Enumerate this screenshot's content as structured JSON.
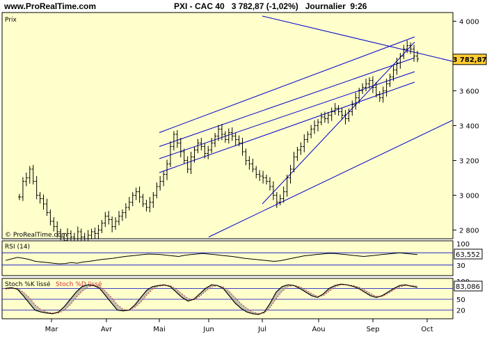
{
  "header": {
    "site": "www.ProRealTime.com",
    "title": "PXI - CAC 40   3 782,87 (-1,02%)   Journalier  9:26"
  },
  "colors": {
    "panel_bg": "#ffffcc",
    "price_bars": "#000000",
    "trend_lines": "#0000cc",
    "last_price_tag": "#ffcc33",
    "stoch_k": "#000000",
    "stoch_d": "#cc3333",
    "stoch_fill": "#999999"
  },
  "chart_data": [
    {
      "type": "ohlc",
      "panel": "price",
      "label": "Prix",
      "watermark": "© ProRealTime.com",
      "ylim": [
        2750,
        4050
      ],
      "y_ticks": [
        2800,
        3000,
        3200,
        3400,
        3600,
        3800,
        4000
      ],
      "y_tick_labels": [
        "2 800",
        "3 000",
        "3 200",
        "3 400",
        "3 600",
        "3 800",
        "4 000"
      ],
      "x_tick_labels": [
        "Mar",
        "Avr",
        "Mai",
        "Jun",
        "Jul",
        "Aou",
        "Sep",
        "Oct"
      ],
      "last_value": 3782.87,
      "last_value_label": "3 782,87",
      "series": [
        {
          "values": [
            2990,
            3080,
            3100,
            3150,
            3080,
            3000,
            2980,
            2950,
            2900,
            2850,
            2820,
            2790,
            2760,
            2740,
            2780,
            2760,
            2750,
            2790,
            2760,
            2750,
            2770,
            2790,
            2780,
            2800,
            2840,
            2880,
            2860,
            2820,
            2850,
            2880,
            2900,
            2930,
            2960,
            3000,
            3020,
            2990,
            2950,
            2930,
            2960,
            3000,
            3050,
            3080,
            3120,
            3180,
            3280,
            3350,
            3300,
            3250,
            3200,
            3150,
            3220,
            3260,
            3300,
            3280,
            3240,
            3260,
            3300,
            3340,
            3380,
            3350,
            3320,
            3360,
            3340,
            3320,
            3300,
            3250,
            3200,
            3180,
            3150,
            3120,
            3110,
            3100,
            3080,
            3050,
            3000,
            2960,
            2980,
            3020,
            3100,
            3150,
            3220,
            3260,
            3280,
            3320,
            3350,
            3380,
            3400,
            3420,
            3450,
            3440,
            3460,
            3480,
            3500,
            3480,
            3460,
            3440,
            3480,
            3520,
            3560,
            3600,
            3620,
            3640,
            3660,
            3620,
            3580,
            3560,
            3600,
            3640,
            3680,
            3720,
            3760,
            3800,
            3840,
            3860,
            3840,
            3800,
            3783
          ]
        }
      ],
      "trend_lines": [
        {
          "from": [
            "Mai",
            3360
          ],
          "to": [
            "Sep end",
            3910
          ]
        },
        {
          "from": [
            "Mai",
            3280
          ],
          "to": [
            "Sep end",
            3790
          ]
        },
        {
          "from": [
            "Mai",
            3210
          ],
          "to": [
            "Sep end",
            3710
          ]
        },
        {
          "from": [
            "Mai",
            3130
          ],
          "to": [
            "Sep end",
            3650
          ]
        },
        {
          "from": [
            "Jul",
            2950
          ],
          "to": [
            "Sep end",
            3880
          ]
        },
        {
          "from": [
            "Jun",
            2760
          ],
          "to": [
            "Oct end",
            3430
          ]
        },
        {
          "from": [
            "Jul",
            4030
          ],
          "to": [
            "Oct end",
            3770
          ]
        }
      ]
    },
    {
      "type": "line",
      "panel": "rsi",
      "title": "RSI (14)",
      "ylim": [
        0,
        100
      ],
      "y_ticks": [
        100,
        70,
        30
      ],
      "y_tick_labels": [
        "100",
        "",
        "30"
      ],
      "last_value_label": "63,552",
      "series": [
        {
          "name": "RSI (14)",
          "values": [
            45,
            50,
            55,
            52,
            48,
            42,
            40,
            38,
            36,
            34,
            35,
            38,
            36,
            40,
            42,
            45,
            48,
            50,
            52,
            55,
            58,
            60,
            62,
            64,
            66,
            65,
            64,
            62,
            60,
            58,
            62,
            64,
            66,
            68,
            66,
            64,
            62,
            60,
            58,
            55,
            52,
            50,
            48,
            46,
            44,
            42,
            44,
            48,
            52,
            56,
            60,
            62,
            64,
            66,
            68,
            68,
            66,
            64,
            62,
            60,
            58,
            60,
            62,
            64,
            66,
            68,
            70,
            68,
            66,
            64
          ]
        }
      ]
    },
    {
      "type": "line",
      "panel": "stochastic",
      "title": "Stoch %K lissé",
      "ylim": [
        0,
        100
      ],
      "y_ticks": [
        100,
        80,
        50,
        20
      ],
      "y_tick_labels": [
        "100",
        "",
        "50",
        "20"
      ],
      "last_value_label": "83,086",
      "series": [
        {
          "name": "Stoch %K lissé",
          "values": [
            80,
            82,
            78,
            60,
            40,
            20,
            15,
            12,
            10,
            15,
            30,
            50,
            70,
            85,
            90,
            88,
            80,
            60,
            40,
            20,
            18,
            20,
            35,
            55,
            75,
            85,
            88,
            90,
            85,
            70,
            55,
            45,
            50,
            65,
            80,
            90,
            88,
            80,
            60,
            40,
            25,
            15,
            10,
            8,
            15,
            40,
            70,
            85,
            90,
            88,
            80,
            70,
            60,
            55,
            65,
            80,
            88,
            92,
            90,
            86,
            80,
            70,
            60,
            55,
            60,
            70,
            80,
            88,
            90,
            86,
            83
          ]
        },
        {
          "name": "Stoch %D lissé",
          "values": [
            78,
            80,
            80,
            70,
            55,
            35,
            22,
            15,
            12,
            12,
            20,
            35,
            55,
            72,
            84,
            88,
            86,
            72,
            55,
            35,
            22,
            20,
            28,
            42,
            62,
            78,
            86,
            88,
            88,
            78,
            65,
            52,
            48,
            58,
            72,
            84,
            88,
            84,
            72,
            55,
            38,
            25,
            15,
            11,
            12,
            28,
            52,
            72,
            85,
            88,
            85,
            76,
            66,
            58,
            60,
            72,
            84,
            90,
            90,
            88,
            84,
            76,
            66,
            58,
            58,
            66,
            76,
            84,
            88,
            88,
            86
          ]
        }
      ]
    }
  ]
}
